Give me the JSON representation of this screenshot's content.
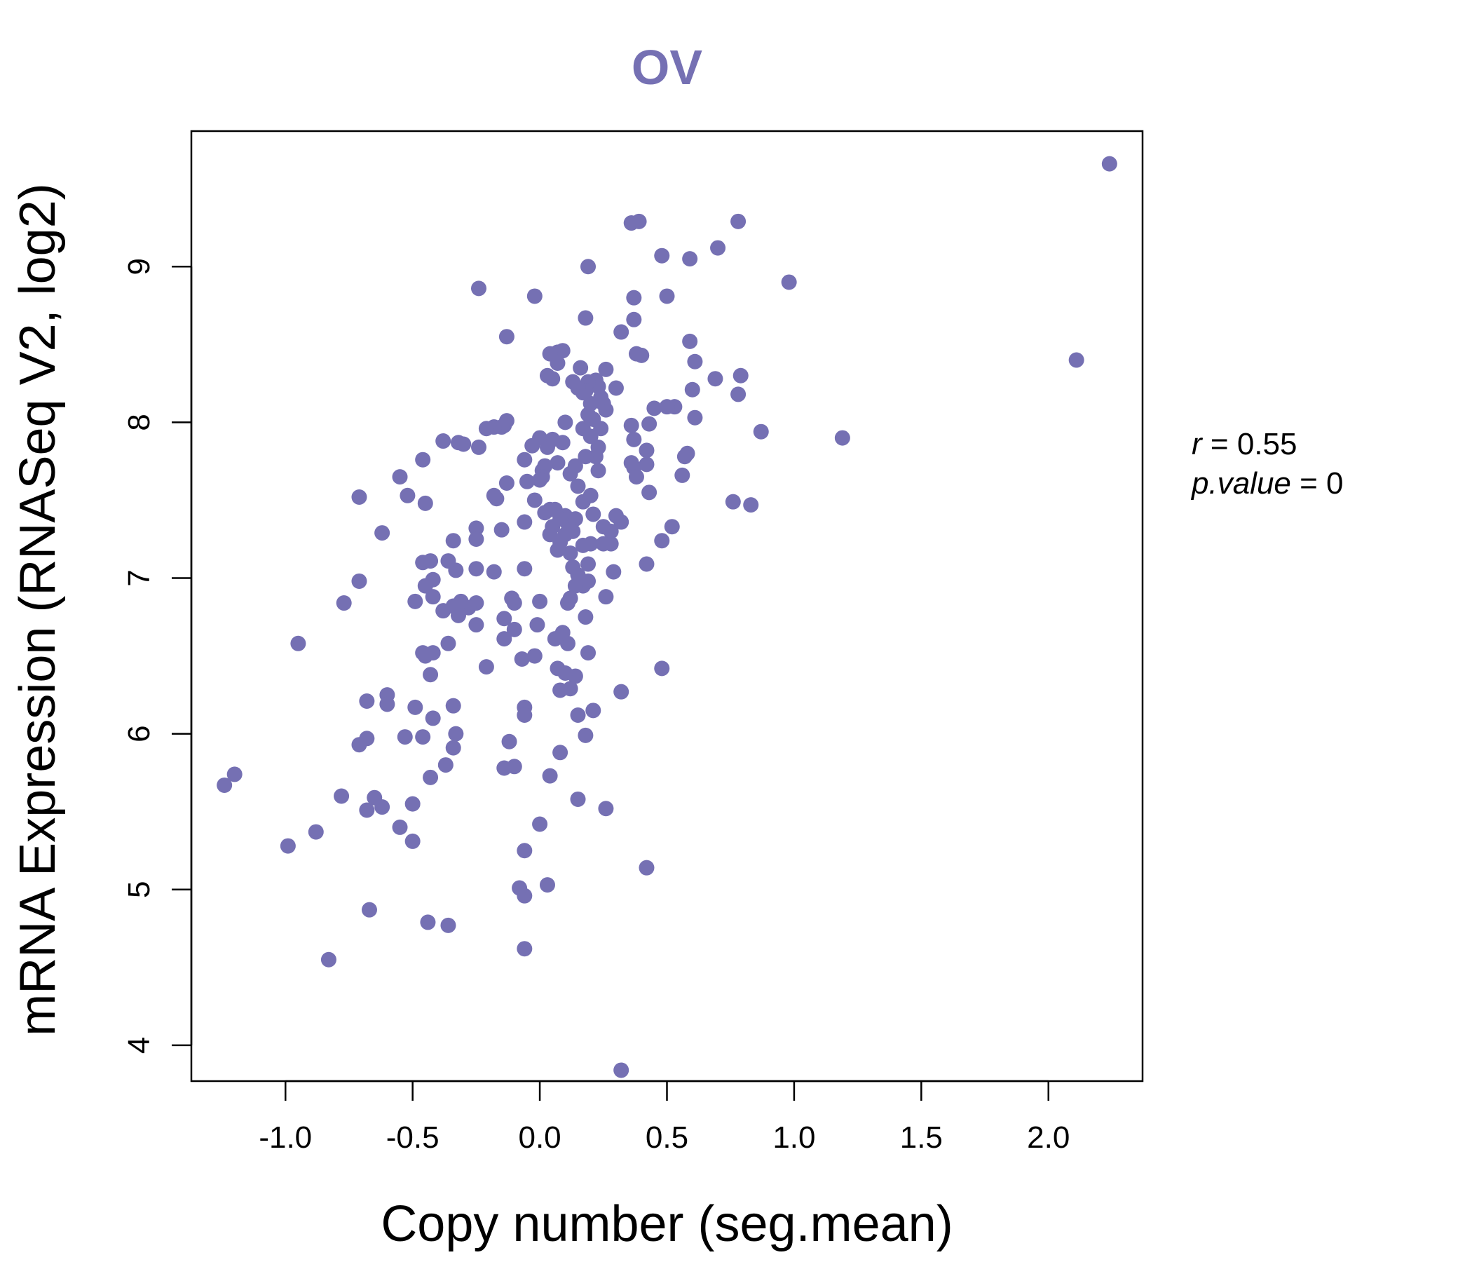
{
  "colors": {
    "point": "#7570b3",
    "title": "#7570b3",
    "axis": "#000000"
  },
  "chart_data": {
    "type": "scatter",
    "title": "OV",
    "xlabel": "Copy number (seg.mean)",
    "ylabel": "mRNA Expression (RNASeq V2, log2)",
    "xlim": [
      -1.37,
      2.37
    ],
    "ylim": [
      3.77,
      9.87
    ],
    "xticks": [
      -1.0,
      -0.5,
      0.0,
      0.5,
      1.0,
      1.5,
      2.0
    ],
    "xtick_labels": [
      "-1.0",
      "-0.5",
      "0.0",
      "0.5",
      "1.0",
      "1.5",
      "2.0"
    ],
    "yticks": [
      4,
      5,
      6,
      7,
      8,
      9
    ],
    "ytick_labels": [
      "4",
      "5",
      "6",
      "7",
      "8",
      "9"
    ],
    "grid": false,
    "annotation": {
      "r_label": "r",
      "r_value": "0.55",
      "p_label": "p.value",
      "p_value": "0"
    },
    "points": [
      [
        2.24,
        9.66
      ],
      [
        2.11,
        8.4
      ],
      [
        0.98,
        8.9
      ],
      [
        1.19,
        7.9
      ],
      [
        0.87,
        7.94
      ],
      [
        0.83,
        7.47
      ],
      [
        0.79,
        8.3
      ],
      [
        0.78,
        8.18
      ],
      [
        0.78,
        9.29
      ],
      [
        0.76,
        7.49
      ],
      [
        0.7,
        9.12
      ],
      [
        0.69,
        8.28
      ],
      [
        0.61,
        8.39
      ],
      [
        0.61,
        8.03
      ],
      [
        0.6,
        8.21
      ],
      [
        0.59,
        9.05
      ],
      [
        0.59,
        8.52
      ],
      [
        0.58,
        7.8
      ],
      [
        0.57,
        7.78
      ],
      [
        0.56,
        7.66
      ],
      [
        0.53,
        8.1
      ],
      [
        0.52,
        7.33
      ],
      [
        0.5,
        8.81
      ],
      [
        0.5,
        8.1
      ],
      [
        0.48,
        9.07
      ],
      [
        0.48,
        7.24
      ],
      [
        0.48,
        6.42
      ],
      [
        0.45,
        8.09
      ],
      [
        0.43,
        7.55
      ],
      [
        0.43,
        7.99
      ],
      [
        0.42,
        7.73
      ],
      [
        0.42,
        7.82
      ],
      [
        0.42,
        7.09
      ],
      [
        0.42,
        5.14
      ],
      [
        0.4,
        8.43
      ],
      [
        0.39,
        9.29
      ],
      [
        0.38,
        7.65
      ],
      [
        0.38,
        8.44
      ],
      [
        0.37,
        8.66
      ],
      [
        0.37,
        8.8
      ],
      [
        0.37,
        7.89
      ],
      [
        0.37,
        7.71
      ],
      [
        0.36,
        9.28
      ],
      [
        0.36,
        7.74
      ],
      [
        0.36,
        7.98
      ],
      [
        0.32,
        8.58
      ],
      [
        0.32,
        7.36
      ],
      [
        0.32,
        6.27
      ],
      [
        0.32,
        3.84
      ],
      [
        0.3,
        8.22
      ],
      [
        0.3,
        7.4
      ],
      [
        0.29,
        7.04
      ],
      [
        0.28,
        7.3
      ],
      [
        0.28,
        7.22
      ],
      [
        0.26,
        8.34
      ],
      [
        0.26,
        8.08
      ],
      [
        0.26,
        6.88
      ],
      [
        0.26,
        5.52
      ],
      [
        0.25,
        8.12
      ],
      [
        0.25,
        7.22
      ],
      [
        0.25,
        7.33
      ],
      [
        0.24,
        8.16
      ],
      [
        0.24,
        7.96
      ],
      [
        0.23,
        8.23
      ],
      [
        0.23,
        7.84
      ],
      [
        0.23,
        7.69
      ],
      [
        0.22,
        8.27
      ],
      [
        0.22,
        7.78
      ],
      [
        0.21,
        8.02
      ],
      [
        0.21,
        7.41
      ],
      [
        0.21,
        6.15
      ],
      [
        0.2,
        8.12
      ],
      [
        0.2,
        7.91
      ],
      [
        0.2,
        7.53
      ],
      [
        0.2,
        7.22
      ],
      [
        0.19,
        9.0
      ],
      [
        0.19,
        8.26
      ],
      [
        0.19,
        8.05
      ],
      [
        0.19,
        7.09
      ],
      [
        0.19,
        6.98
      ],
      [
        0.19,
        6.52
      ],
      [
        0.18,
        8.67
      ],
      [
        0.18,
        8.2
      ],
      [
        0.18,
        7.78
      ],
      [
        0.18,
        6.75
      ],
      [
        0.18,
        5.99
      ],
      [
        0.17,
        8.19
      ],
      [
        0.17,
        7.96
      ],
      [
        0.17,
        7.49
      ],
      [
        0.17,
        7.21
      ],
      [
        0.17,
        6.95
      ],
      [
        0.16,
        8.35
      ],
      [
        0.15,
        8.22
      ],
      [
        0.15,
        7.59
      ],
      [
        0.15,
        7.02
      ],
      [
        0.15,
        6.12
      ],
      [
        0.15,
        5.58
      ],
      [
        0.14,
        7.72
      ],
      [
        0.14,
        7.38
      ],
      [
        0.14,
        6.95
      ],
      [
        0.14,
        6.37
      ],
      [
        0.13,
        8.26
      ],
      [
        0.13,
        7.3
      ],
      [
        0.13,
        7.07
      ],
      [
        0.12,
        7.67
      ],
      [
        0.12,
        7.16
      ],
      [
        0.12,
        6.87
      ],
      [
        0.12,
        6.29
      ],
      [
        0.11,
        7.35
      ],
      [
        0.11,
        6.84
      ],
      [
        0.11,
        6.58
      ],
      [
        0.1,
        8.0
      ],
      [
        0.1,
        7.4
      ],
      [
        0.1,
        7.28
      ],
      [
        0.1,
        6.39
      ],
      [
        0.09,
        8.46
      ],
      [
        0.09,
        7.87
      ],
      [
        0.09,
        6.65
      ],
      [
        0.08,
        7.38
      ],
      [
        0.08,
        7.23
      ],
      [
        0.08,
        6.28
      ],
      [
        0.08,
        5.88
      ],
      [
        0.07,
        8.45
      ],
      [
        0.07,
        8.38
      ],
      [
        0.07,
        7.74
      ],
      [
        0.07,
        7.18
      ],
      [
        0.07,
        6.42
      ],
      [
        0.06,
        7.44
      ],
      [
        0.06,
        6.61
      ],
      [
        0.05,
        8.28
      ],
      [
        0.05,
        7.89
      ],
      [
        0.05,
        7.33
      ],
      [
        0.04,
        8.44
      ],
      [
        0.04,
        7.44
      ],
      [
        0.04,
        7.28
      ],
      [
        0.04,
        5.73
      ],
      [
        0.03,
        8.3
      ],
      [
        0.03,
        7.84
      ],
      [
        0.03,
        5.03
      ],
      [
        0.02,
        7.72
      ],
      [
        0.02,
        7.42
      ],
      [
        0.01,
        7.69
      ],
      [
        0.01,
        7.65
      ],
      [
        0.0,
        7.9
      ],
      [
        0.0,
        7.63
      ],
      [
        0.0,
        6.85
      ],
      [
        0.0,
        5.42
      ],
      [
        -0.01,
        6.7
      ],
      [
        -0.02,
        8.81
      ],
      [
        -0.02,
        7.5
      ],
      [
        -0.02,
        6.5
      ],
      [
        -0.03,
        7.85
      ],
      [
        -0.05,
        7.62
      ],
      [
        -0.06,
        7.76
      ],
      [
        -0.06,
        7.36
      ],
      [
        -0.06,
        7.06
      ],
      [
        -0.06,
        6.17
      ],
      [
        -0.06,
        6.12
      ],
      [
        -0.06,
        5.25
      ],
      [
        -0.06,
        4.96
      ],
      [
        -0.06,
        4.62
      ],
      [
        -0.07,
        6.48
      ],
      [
        -0.08,
        5.01
      ],
      [
        -0.1,
        6.84
      ],
      [
        -0.1,
        6.67
      ],
      [
        -0.1,
        5.79
      ],
      [
        -0.11,
        6.87
      ],
      [
        -0.12,
        5.95
      ],
      [
        -0.13,
        8.55
      ],
      [
        -0.13,
        8.01
      ],
      [
        -0.13,
        7.61
      ],
      [
        -0.14,
        7.98
      ],
      [
        -0.14,
        6.74
      ],
      [
        -0.14,
        6.61
      ],
      [
        -0.14,
        5.78
      ],
      [
        -0.15,
        7.97
      ],
      [
        -0.15,
        7.31
      ],
      [
        -0.17,
        7.51
      ],
      [
        -0.18,
        7.53
      ],
      [
        -0.18,
        7.97
      ],
      [
        -0.18,
        7.04
      ],
      [
        -0.21,
        7.96
      ],
      [
        -0.21,
        6.43
      ],
      [
        -0.24,
        8.86
      ],
      [
        -0.24,
        7.84
      ],
      [
        -0.25,
        6.84
      ],
      [
        -0.25,
        6.7
      ],
      [
        -0.25,
        7.32
      ],
      [
        -0.25,
        7.06
      ],
      [
        -0.25,
        7.25
      ],
      [
        -0.28,
        6.81
      ],
      [
        -0.3,
        7.86
      ],
      [
        -0.3,
        6.81
      ],
      [
        -0.31,
        6.85
      ],
      [
        -0.32,
        7.87
      ],
      [
        -0.32,
        6.76
      ],
      [
        -0.33,
        7.05
      ],
      [
        -0.33,
        6.0
      ],
      [
        -0.34,
        6.82
      ],
      [
        -0.34,
        7.24
      ],
      [
        -0.34,
        6.18
      ],
      [
        -0.34,
        5.91
      ],
      [
        -0.36,
        7.11
      ],
      [
        -0.36,
        6.58
      ],
      [
        -0.36,
        4.77
      ],
      [
        -0.37,
        5.8
      ],
      [
        -0.38,
        7.88
      ],
      [
        -0.38,
        6.79
      ],
      [
        -0.42,
        6.99
      ],
      [
        -0.42,
        6.88
      ],
      [
        -0.42,
        6.52
      ],
      [
        -0.42,
        6.1
      ],
      [
        -0.43,
        7.11
      ],
      [
        -0.43,
        6.38
      ],
      [
        -0.43,
        5.72
      ],
      [
        -0.44,
        4.79
      ],
      [
        -0.45,
        7.48
      ],
      [
        -0.45,
        6.95
      ],
      [
        -0.45,
        6.5
      ],
      [
        -0.46,
        7.76
      ],
      [
        -0.46,
        7.1
      ],
      [
        -0.46,
        6.52
      ],
      [
        -0.46,
        5.98
      ],
      [
        -0.49,
        6.85
      ],
      [
        -0.49,
        6.17
      ],
      [
        -0.5,
        5.55
      ],
      [
        -0.5,
        5.31
      ],
      [
        -0.52,
        7.53
      ],
      [
        -0.53,
        5.98
      ],
      [
        -0.55,
        7.65
      ],
      [
        -0.55,
        5.4
      ],
      [
        -0.6,
        6.25
      ],
      [
        -0.6,
        6.19
      ],
      [
        -0.62,
        7.29
      ],
      [
        -0.62,
        5.53
      ],
      [
        -0.65,
        5.59
      ],
      [
        -0.67,
        4.87
      ],
      [
        -0.68,
        6.21
      ],
      [
        -0.68,
        5.97
      ],
      [
        -0.68,
        5.51
      ],
      [
        -0.71,
        7.52
      ],
      [
        -0.71,
        6.98
      ],
      [
        -0.71,
        5.93
      ],
      [
        -0.77,
        6.84
      ],
      [
        -0.78,
        5.6
      ],
      [
        -0.83,
        4.55
      ],
      [
        -0.88,
        5.37
      ],
      [
        -0.95,
        6.58
      ],
      [
        -0.99,
        5.28
      ],
      [
        -1.2,
        5.74
      ],
      [
        -1.24,
        5.67
      ]
    ]
  }
}
